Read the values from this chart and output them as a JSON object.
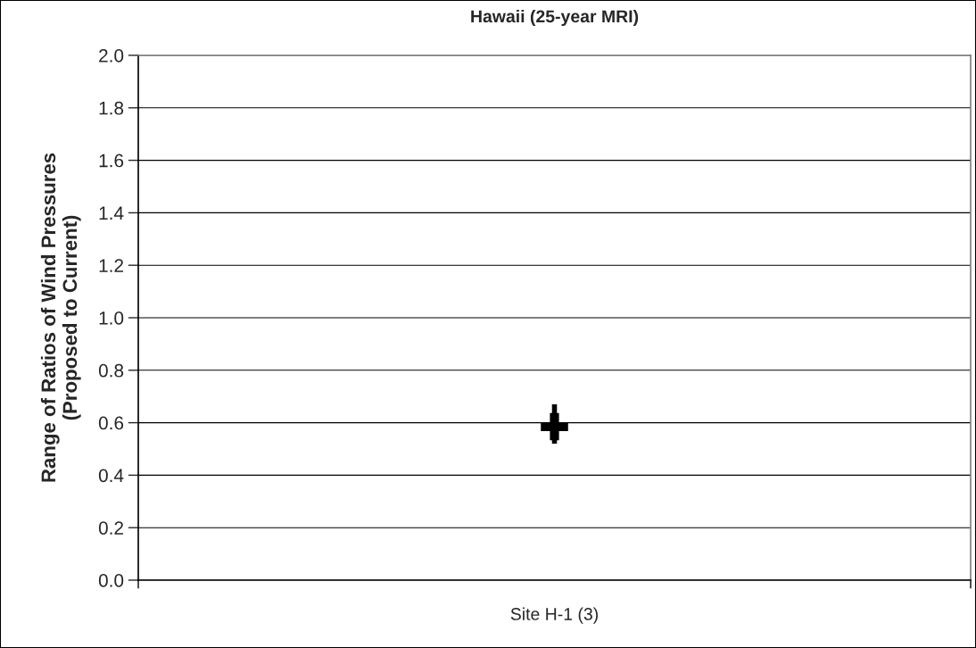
{
  "chart_data": {
    "type": "scatter",
    "title": "Hawaii (25-year MRI)",
    "ylabel": "Range of Ratios of Wind Pressures\n(Proposed to Current)",
    "categories": [
      "Site H-1 (3)"
    ],
    "series": [
      {
        "color": "#000000",
        "values": [
          0.585
        ],
        "errors": [
          [
            0.52,
            0.67
          ]
        ]
      }
    ],
    "marker": "cross",
    "ylim": [
      0,
      2.0
    ],
    "yticks": [
      {
        "value": 0,
        "label": "0.0"
      },
      {
        "value": 0.2,
        "label": "0.2"
      },
      {
        "value": 0.4,
        "label": "0.4"
      },
      {
        "value": 0.6,
        "label": "0.6"
      },
      {
        "value": 0.8,
        "label": "0.8"
      },
      {
        "value": 1.0,
        "label": "1.0"
      },
      {
        "value": 1.2,
        "label": "1.2"
      },
      {
        "value": 1.4,
        "label": "1.4"
      },
      {
        "value": 1.6,
        "label": "1.6"
      },
      {
        "value": 1.8,
        "label": "1.8"
      },
      {
        "value": 2.0,
        "label": "2.0"
      }
    ],
    "grid": "y",
    "legend": false
  }
}
